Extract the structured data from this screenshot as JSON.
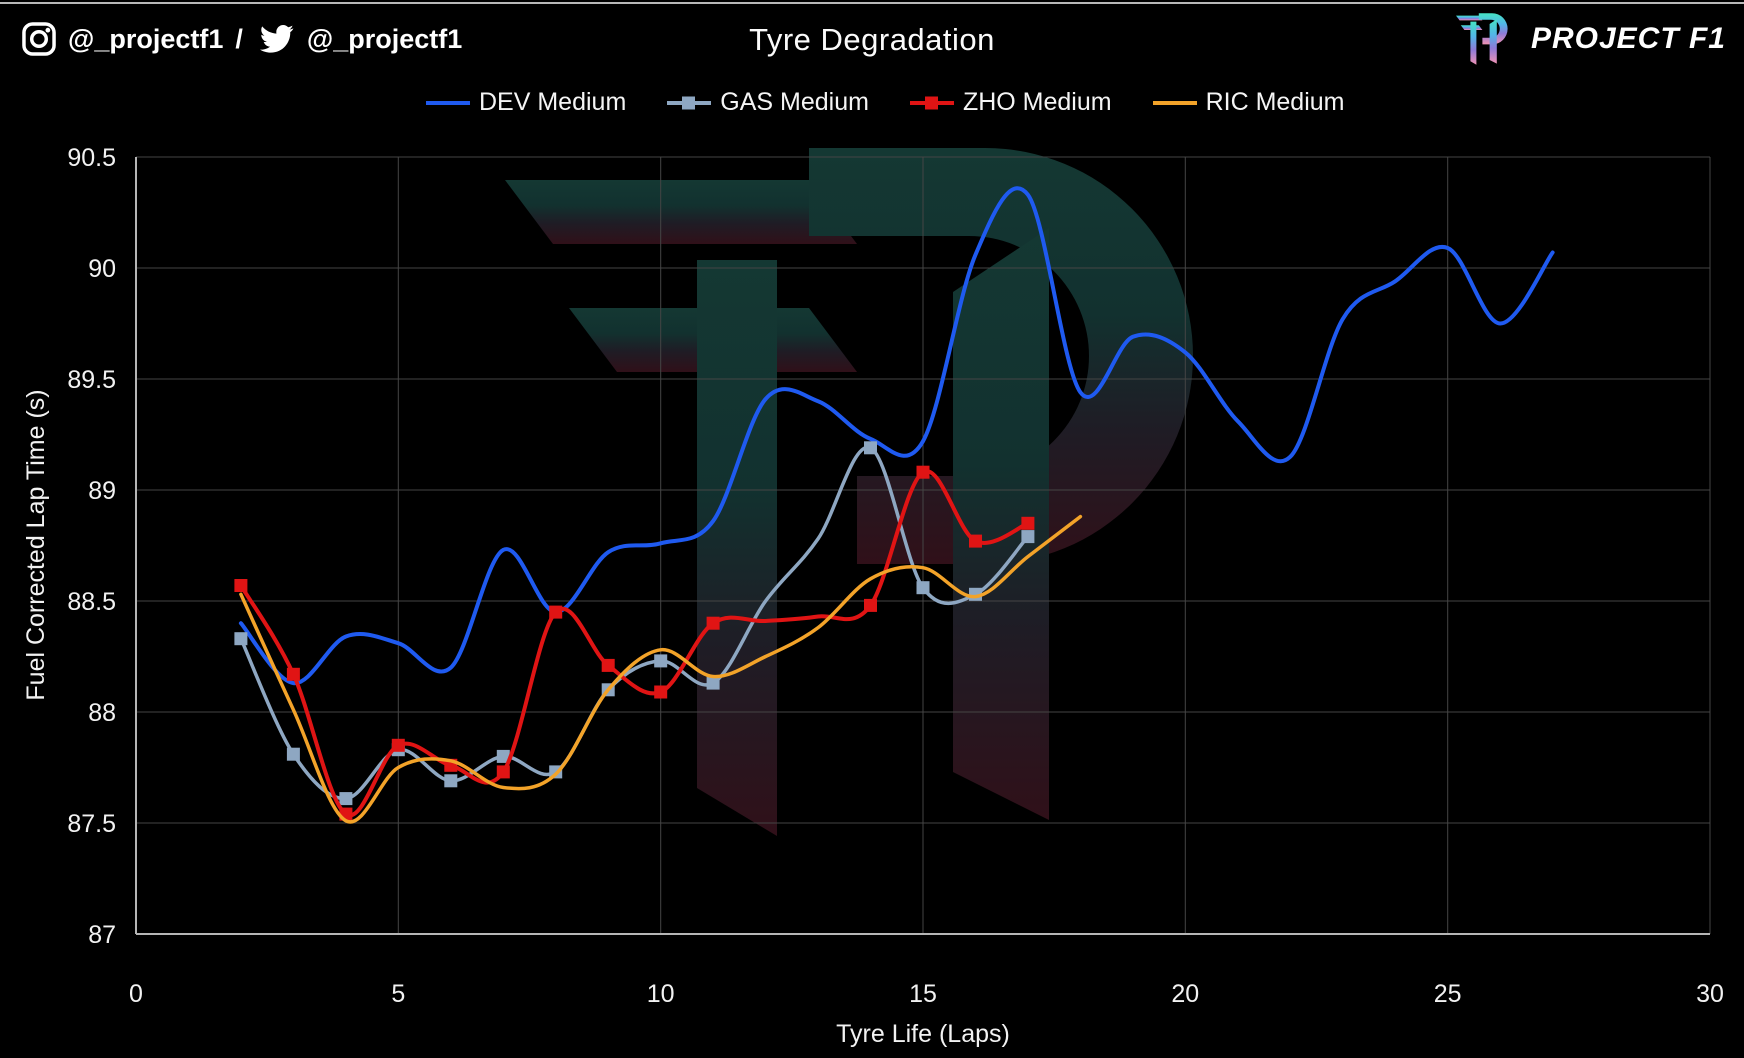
{
  "page": {
    "background": "#000000",
    "top_border_color": "#d8d8d8"
  },
  "header": {
    "instagram_handle": "@_projectf1",
    "separator": "/",
    "twitter_handle": "@_projectf1",
    "title": "Tyre Degradation",
    "brand": "PROJECT F1"
  },
  "icons": {
    "instagram": "instagram-icon",
    "twitter": "twitter-bird-icon",
    "brand_logo": "project-f1-p1-logo",
    "watermark": "project-f1-p1-watermark"
  },
  "chart_data": {
    "type": "line",
    "title": "Tyre Degradation",
    "xlabel": "Tyre Life (Laps)",
    "ylabel": "Fuel Corrected Lap Time (s)",
    "xlim": [
      0,
      30
    ],
    "ylim": [
      87,
      90.5
    ],
    "grid": true,
    "legend_position": "top",
    "background": "#000000",
    "grid_color": "#454545",
    "axis_color": "#b5b5b5",
    "text_color": "#f2f2f2",
    "xticks": {
      "values": [
        0,
        5,
        10,
        15,
        20,
        25,
        30
      ],
      "labels": [
        "0",
        "5",
        "10",
        "15",
        "20",
        "25",
        "30"
      ]
    },
    "yticks": {
      "values": [
        87,
        87.5,
        88,
        88.5,
        89,
        89.5,
        90,
        90.5
      ],
      "labels": [
        "87",
        "87.5",
        "88",
        "88.5",
        "89",
        "89.5",
        "90",
        "90.5"
      ]
    },
    "series": [
      {
        "name": "DEV Medium",
        "color": "#1f5af0",
        "marker": "none",
        "line_width": 4,
        "laps": [
          2,
          3,
          4,
          5,
          6,
          7,
          8,
          9,
          10,
          11,
          12,
          13,
          14,
          15,
          16,
          17,
          18,
          19,
          20,
          21,
          22,
          23,
          24,
          25,
          26,
          27
        ],
        "times": [
          88.4,
          88.13,
          88.34,
          88.31,
          88.2,
          88.73,
          88.45,
          88.72,
          88.76,
          88.86,
          89.41,
          89.4,
          89.23,
          89.22,
          90.06,
          90.33,
          89.44,
          89.69,
          89.62,
          89.31,
          89.15,
          89.77,
          89.94,
          90.09,
          89.75,
          90.07
        ]
      },
      {
        "name": "GAS Medium",
        "color": "#8ea7c2",
        "marker": "square",
        "marker_skip": [
          12,
          13
        ],
        "line_width": 3.5,
        "laps": [
          2,
          3,
          4,
          5,
          6,
          7,
          8,
          9,
          10,
          11,
          12,
          13,
          14,
          15,
          16,
          17
        ],
        "times": [
          88.33,
          87.81,
          87.61,
          87.83,
          87.69,
          87.8,
          87.73,
          88.1,
          88.23,
          88.13,
          88.5,
          88.78,
          89.19,
          88.56,
          88.53,
          88.79
        ]
      },
      {
        "name": "ZHO Medium",
        "color": "#e01414",
        "marker": "square",
        "marker_skip": [
          12,
          13
        ],
        "line_width": 4,
        "laps": [
          2,
          3,
          4,
          5,
          6,
          7,
          8,
          9,
          10,
          11,
          12,
          13,
          14,
          15,
          16,
          17
        ],
        "times": [
          88.57,
          88.17,
          87.54,
          87.85,
          87.76,
          87.73,
          88.45,
          88.21,
          88.09,
          88.4,
          88.41,
          88.43,
          88.48,
          89.08,
          88.77,
          88.85
        ]
      },
      {
        "name": "RIC Medium",
        "color": "#f3a329",
        "marker": "none",
        "line_width": 3.5,
        "laps": [
          2,
          3,
          4,
          5,
          6,
          7,
          8,
          9,
          10,
          11,
          12,
          13,
          14,
          15,
          16,
          17,
          18
        ],
        "times": [
          88.53,
          88.01,
          87.51,
          87.75,
          87.78,
          87.66,
          87.72,
          88.1,
          88.28,
          88.16,
          88.25,
          88.38,
          88.6,
          88.65,
          88.52,
          88.7,
          88.88
        ]
      }
    ]
  }
}
